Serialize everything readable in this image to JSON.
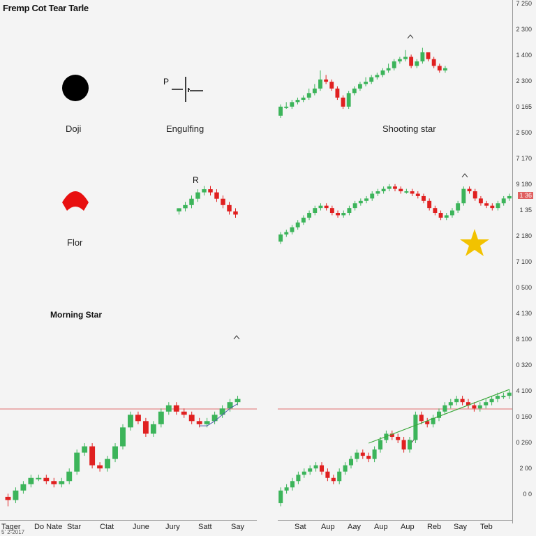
{
  "title": "Fremp Cot Tear Tarle",
  "panels": {
    "doji": {
      "label": "Doji"
    },
    "engulfing": {
      "label": "Engulfing",
      "marker": "P"
    },
    "shooting_star": {
      "label": "Shooting star"
    },
    "pin": {
      "label": "Flor"
    },
    "r_marker": {
      "label": "R"
    },
    "morning_star": {
      "label": "Morning Star"
    }
  },
  "right_axis": {
    "ticks": [
      "7 250",
      "2 300",
      "1 400",
      "2 300",
      "0 165",
      "2 500",
      "7 170",
      "9 180",
      "1 35",
      "2 180",
      "7 100",
      "0 500",
      "4 130",
      "8 100",
      "0 320",
      "4 100",
      "0 160",
      "0 260",
      "2 00",
      "0 0"
    ],
    "highlight_tick": "1 36",
    "highlight_color": "#e06060"
  },
  "bottom_axis_left": [
    "Tager",
    "Do Nate",
    "Star",
    "Ctat",
    "June",
    "Jury",
    "Satt",
    "Say"
  ],
  "bottom_axis_right": [
    "Sat",
    "Aup",
    "Aay",
    "Aup",
    "Aup",
    "Reb",
    "Say",
    "Teb"
  ],
  "footnote": "5' 2-2017",
  "colors": {
    "up": "#3cb45a",
    "down": "#e02020",
    "star": "#f2c200",
    "trend": "#3aa83a",
    "refline": "#e07070",
    "ma": "#4a5aa8"
  },
  "chart_data": [
    {
      "type": "candlestick",
      "name_hint": "top-right",
      "x": [
        1,
        2,
        3,
        4,
        5,
        6,
        7,
        8,
        9,
        10,
        11,
        12,
        13,
        14,
        15,
        16,
        17,
        18,
        19,
        20,
        21,
        22,
        23,
        24,
        25,
        26,
        27,
        28,
        29,
        30
      ],
      "open": [
        10,
        14,
        14,
        16,
        17,
        18,
        20,
        22,
        26,
        25,
        22,
        18,
        14,
        20,
        22,
        24,
        25,
        27,
        28,
        30,
        31,
        34,
        35,
        36,
        32,
        34,
        38,
        35,
        32,
        30
      ],
      "close": [
        14,
        14,
        16,
        17,
        18,
        20,
        22,
        26,
        25,
        22,
        18,
        14,
        20,
        22,
        24,
        25,
        27,
        28,
        30,
        31,
        34,
        35,
        36,
        32,
        34,
        38,
        35,
        32,
        30,
        31
      ],
      "high": [
        15,
        16,
        17,
        18,
        19,
        22,
        24,
        30,
        28,
        26,
        23,
        19,
        21,
        23,
        25,
        27,
        28,
        29,
        31,
        33,
        35,
        36,
        39,
        37,
        35,
        40,
        38,
        36,
        33,
        32
      ],
      "low": [
        9,
        13,
        13,
        15,
        16,
        17,
        19,
        21,
        24,
        21,
        17,
        13,
        13,
        19,
        21,
        23,
        24,
        26,
        27,
        29,
        30,
        33,
        34,
        31,
        31,
        33,
        34,
        31,
        29,
        29
      ],
      "ylim": [
        5,
        42
      ]
    },
    {
      "type": "candlestick",
      "name_hint": "middle-right",
      "x": [
        1,
        2,
        3,
        4,
        5,
        6,
        7,
        8,
        9,
        10,
        11,
        12,
        13,
        14,
        15,
        16,
        17,
        18,
        19,
        20,
        21,
        22,
        23,
        24,
        25,
        26,
        27,
        28,
        29,
        30,
        31,
        32,
        33,
        34,
        35,
        36,
        37,
        38,
        39,
        40,
        41
      ],
      "open": [
        8,
        11,
        12,
        14,
        16,
        18,
        20,
        22,
        23,
        22,
        20,
        19,
        20,
        22,
        24,
        25,
        26,
        28,
        29,
        30,
        31,
        30,
        29,
        29,
        28,
        27,
        25,
        22,
        20,
        18,
        19,
        21,
        24,
        30,
        29,
        26,
        24,
        23,
        22,
        24,
        26
      ],
      "close": [
        11,
        12,
        14,
        16,
        18,
        20,
        22,
        23,
        22,
        20,
        19,
        20,
        22,
        24,
        25,
        26,
        28,
        29,
        30,
        31,
        30,
        29,
        29,
        28,
        27,
        25,
        22,
        20,
        18,
        19,
        21,
        24,
        30,
        29,
        26,
        24,
        23,
        22,
        24,
        26,
        27
      ],
      "high": [
        12,
        13,
        15,
        17,
        19,
        21,
        23,
        24,
        24,
        23,
        21,
        21,
        23,
        25,
        26,
        27,
        29,
        30,
        31,
        32,
        32,
        31,
        30,
        30,
        29,
        28,
        26,
        23,
        21,
        20,
        22,
        25,
        31,
        31,
        30,
        27,
        25,
        24,
        25,
        27,
        28
      ],
      "low": [
        7,
        10,
        11,
        13,
        15,
        17,
        19,
        21,
        21,
        19,
        18,
        18,
        19,
        21,
        23,
        24,
        25,
        27,
        28,
        29,
        29,
        28,
        28,
        27,
        26,
        24,
        21,
        19,
        17,
        17,
        18,
        20,
        23,
        28,
        25,
        23,
        22,
        21,
        21,
        23,
        25
      ],
      "ylim": [
        4,
        36
      ]
    },
    {
      "type": "candlestick",
      "name_hint": "bottom-left Morning Star",
      "x": [
        1,
        2,
        3,
        4,
        5,
        6,
        7,
        8,
        9,
        10,
        11,
        12,
        13,
        14,
        15,
        16,
        17,
        18,
        19,
        20,
        21,
        22,
        23,
        24,
        25,
        26,
        27,
        28,
        29,
        30,
        31
      ],
      "open": [
        4,
        3,
        6,
        8,
        10,
        10,
        9,
        8,
        9,
        12,
        18,
        20,
        14,
        13,
        16,
        20,
        26,
        30,
        28,
        24,
        27,
        31,
        33,
        31,
        30,
        28,
        27,
        28,
        30,
        32,
        34
      ],
      "close": [
        3,
        6,
        8,
        10,
        10,
        9,
        8,
        9,
        12,
        18,
        20,
        14,
        13,
        16,
        20,
        26,
        30,
        28,
        24,
        27,
        31,
        33,
        31,
        30,
        28,
        27,
        28,
        30,
        32,
        34,
        35
      ],
      "high": [
        5,
        7,
        9,
        11,
        11,
        11,
        10,
        10,
        13,
        19,
        21,
        21,
        15,
        17,
        21,
        27,
        31,
        31,
        29,
        28,
        32,
        34,
        34,
        32,
        31,
        29,
        29,
        31,
        33,
        35,
        36
      ],
      "low": [
        1,
        2,
        5,
        7,
        9,
        8,
        7,
        7,
        8,
        11,
        17,
        13,
        12,
        12,
        15,
        19,
        25,
        27,
        23,
        23,
        26,
        30,
        30,
        29,
        27,
        26,
        26,
        27,
        29,
        31,
        33
      ],
      "ylim": [
        0,
        42
      ],
      "reference_line": 26
    },
    {
      "type": "candlestick",
      "name_hint": "bottom-right",
      "x": [
        1,
        2,
        3,
        4,
        5,
        6,
        7,
        8,
        9,
        10,
        11,
        12,
        13,
        14,
        15,
        16,
        17,
        18,
        19,
        20,
        21,
        22,
        23,
        24,
        25,
        26,
        27,
        28,
        29,
        30,
        31,
        32,
        33,
        34,
        35,
        36,
        37,
        38,
        39,
        40
      ],
      "open": [
        2,
        6,
        7,
        9,
        11,
        12,
        13,
        14,
        12,
        10,
        9,
        12,
        14,
        16,
        18,
        17,
        16,
        19,
        22,
        24,
        23,
        22,
        19,
        22,
        30,
        28,
        27,
        29,
        31,
        33,
        34,
        35,
        34,
        33,
        32,
        33,
        34,
        35,
        36,
        36
      ],
      "close": [
        6,
        7,
        9,
        11,
        12,
        13,
        14,
        12,
        10,
        9,
        12,
        14,
        16,
        18,
        17,
        16,
        19,
        22,
        24,
        23,
        22,
        19,
        22,
        30,
        28,
        27,
        29,
        31,
        33,
        34,
        35,
        34,
        33,
        32,
        33,
        34,
        35,
        36,
        36,
        37
      ],
      "high": [
        7,
        8,
        10,
        12,
        13,
        14,
        15,
        15,
        13,
        11,
        13,
        15,
        17,
        19,
        19,
        18,
        20,
        23,
        25,
        25,
        24,
        23,
        23,
        31,
        31,
        29,
        30,
        32,
        34,
        35,
        36,
        36,
        35,
        34,
        34,
        35,
        36,
        37,
        37,
        38
      ],
      "low": [
        1,
        5,
        6,
        8,
        10,
        11,
        12,
        11,
        9,
        8,
        8,
        11,
        13,
        15,
        16,
        15,
        15,
        18,
        21,
        22,
        21,
        18,
        18,
        21,
        27,
        26,
        26,
        28,
        30,
        32,
        33,
        33,
        32,
        31,
        31,
        32,
        33,
        34,
        35,
        35
      ],
      "ylim": [
        0,
        42
      ],
      "reference_line": 26,
      "trendline": [
        [
          16,
          21
        ],
        [
          40,
          38
        ]
      ]
    }
  ]
}
